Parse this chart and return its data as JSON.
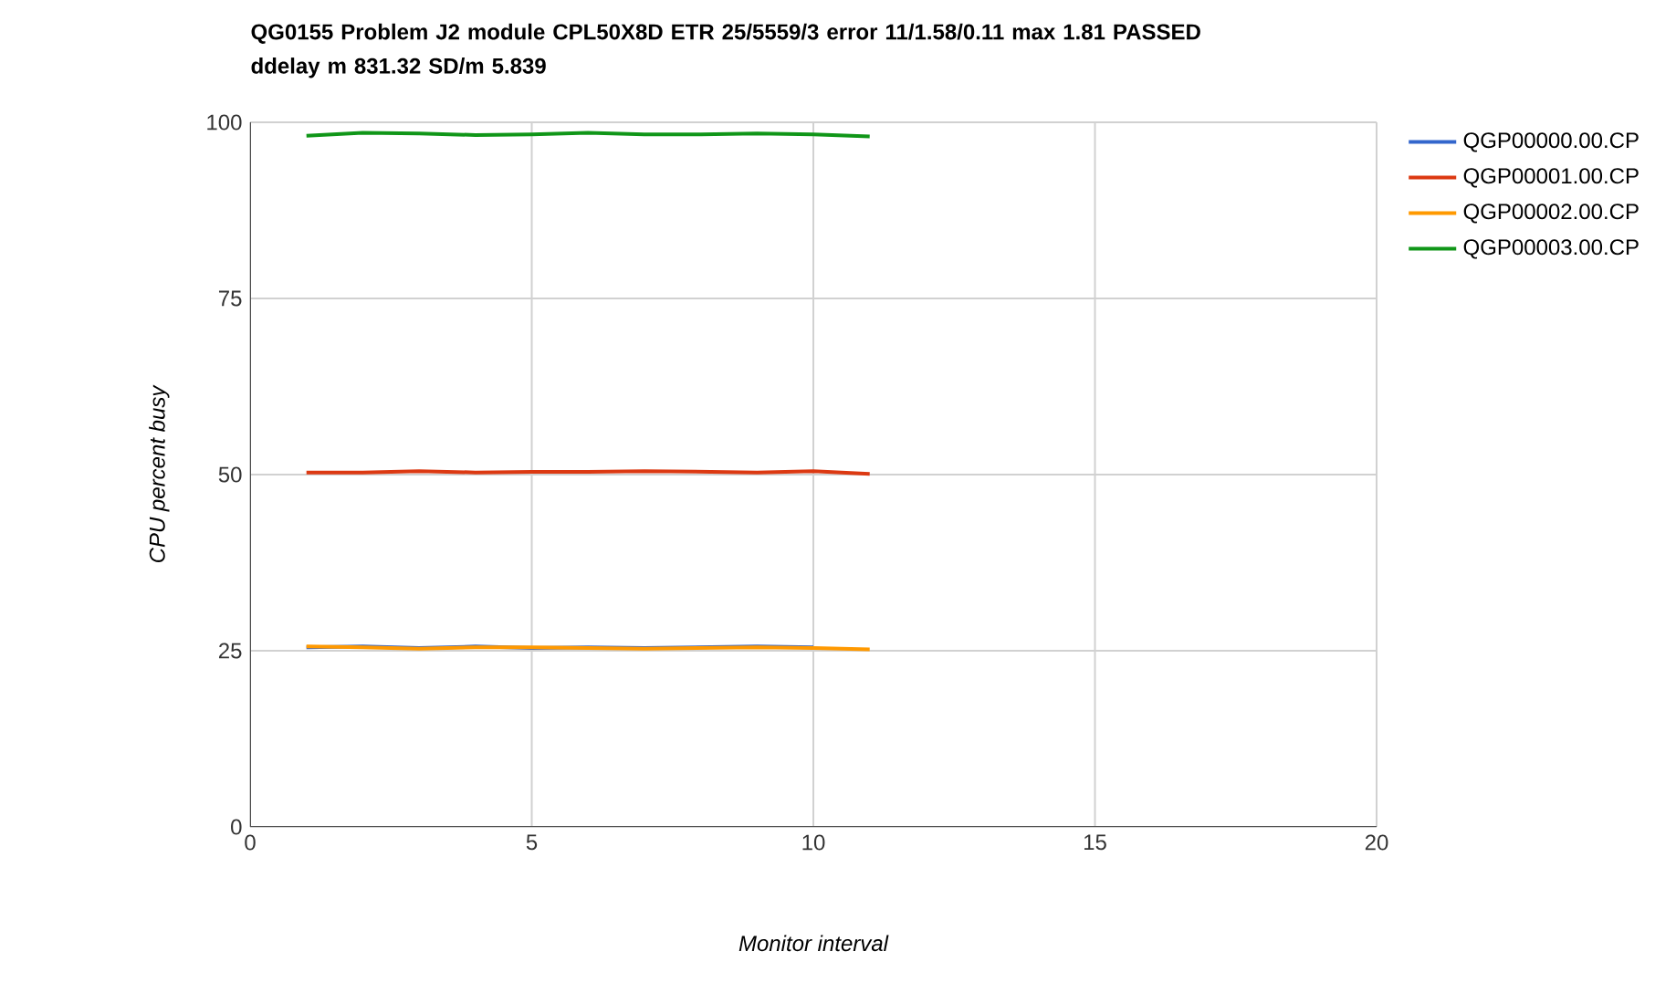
{
  "chart_data": {
    "type": "line",
    "title": "QG0155 Problem J2 module CPL50X8D ETR 25/5559/3 error 11/1.58/0.11 max 1.81 PASSED ddelay m 831.32 SD/m 5.839",
    "xlabel": "Monitor interval",
    "ylabel": "CPU percent busy",
    "x": [
      1,
      2,
      3,
      4,
      5,
      6,
      7,
      8,
      9,
      10,
      11
    ],
    "series": [
      {
        "name": "QGP00000.00.CP",
        "color": "#3366cc",
        "values": [
          25.5,
          25.6,
          25.4,
          25.6,
          25.4,
          25.5,
          25.4,
          25.5,
          25.6,
          25.5,
          null
        ]
      },
      {
        "name": "QGP00001.00.CP",
        "color": "#dc3912",
        "values": [
          50.3,
          50.3,
          50.5,
          50.3,
          50.4,
          50.4,
          50.5,
          50.4,
          50.3,
          50.5,
          50.1
        ]
      },
      {
        "name": "QGP00002.00.CP",
        "color": "#ff9900",
        "values": [
          25.6,
          25.5,
          25.3,
          25.5,
          25.5,
          25.4,
          25.3,
          25.4,
          25.5,
          25.4,
          25.2
        ]
      },
      {
        "name": "QGP00003.00.CP",
        "color": "#109618",
        "values": [
          98.1,
          98.5,
          98.4,
          98.2,
          98.3,
          98.5,
          98.3,
          98.3,
          98.4,
          98.3,
          98.0
        ]
      }
    ],
    "xlim": [
      0,
      20
    ],
    "xticks": [
      0,
      5,
      10,
      15,
      20
    ],
    "ylim": [
      0,
      100
    ],
    "yticks": [
      0,
      25,
      50,
      75,
      100
    ],
    "grid": true,
    "legend": "top right",
    "marker": "none",
    "line_style": "solid"
  }
}
